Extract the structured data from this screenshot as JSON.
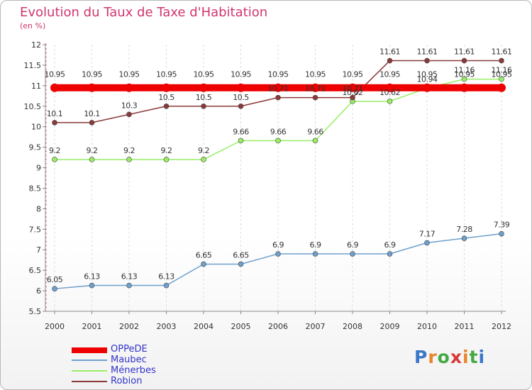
{
  "header": {
    "title": "Evolution du Taux de Taxe d'Habitation",
    "subtitle": "(en %)"
  },
  "logo": {
    "text": "Proxiti",
    "letter_colors": [
      "#3a78c8",
      "#e8862a",
      "#44a844",
      "#d63a3a",
      "#e8862a",
      "#44a844",
      "#3a78c8"
    ]
  },
  "chart_data": {
    "type": "line",
    "title": "Evolution du Taux de Taxe d'Habitation",
    "subtitle": "(en %)",
    "xlabel": "",
    "ylabel": "",
    "ylim": [
      5.5,
      12
    ],
    "yticks": [
      "5.5",
      "6",
      "6.5",
      "7",
      "7.5",
      "8",
      "8.5",
      "9",
      "9.5",
      "10",
      "10.5",
      "11",
      "11.5",
      "12"
    ],
    "x": [
      "2000",
      "2001",
      "2002",
      "2003",
      "2004",
      "2005",
      "2006",
      "2007",
      "2008",
      "2009",
      "2010",
      "2011",
      "2012"
    ],
    "grid": "vertical",
    "legend": "bottom-left",
    "series": [
      {
        "name": "OPPeDE",
        "color": "#ee0000",
        "values": [
          10.95,
          10.95,
          10.95,
          10.95,
          10.95,
          10.95,
          10.95,
          10.95,
          10.95,
          10.95,
          10.95,
          10.95,
          10.95
        ],
        "labels": [
          "10.95",
          "10.95",
          "10.95",
          "10.95",
          "10.95",
          "10.95",
          "10.95",
          "10.95",
          "10.95",
          "10.95",
          "10.95",
          "10.95",
          "10.95"
        ]
      },
      {
        "name": "Maubec",
        "color": "#6fa0cc",
        "values": [
          6.05,
          6.13,
          6.13,
          6.13,
          6.65,
          6.65,
          6.9,
          6.9,
          6.9,
          6.9,
          7.17,
          7.28,
          7.39
        ],
        "labels": [
          "6.05",
          "6.13",
          "6.13",
          "6.13",
          "6.65",
          "6.65",
          "6.9",
          "6.9",
          "6.9",
          "6.9",
          "7.17",
          "7.28",
          "7.39"
        ]
      },
      {
        "name": "Ménerbes",
        "color": "#99ee66",
        "values": [
          9.2,
          9.2,
          9.2,
          9.2,
          9.2,
          9.66,
          9.66,
          9.66,
          10.62,
          10.62,
          10.94,
          11.16,
          11.16
        ],
        "labels": [
          "9.2",
          "9.2",
          "9.2",
          "9.2",
          "9.2",
          "9.66",
          "9.66",
          "9.66",
          "10.62",
          "10.62",
          "10.94",
          "11.16",
          "11.16"
        ]
      },
      {
        "name": "Robion",
        "color": "#8a3a3a",
        "values": [
          10.1,
          10.1,
          10.3,
          10.5,
          10.5,
          10.5,
          10.71,
          10.71,
          10.71,
          11.61,
          11.61,
          11.61,
          11.61
        ],
        "labels": [
          "10.1",
          "10.1",
          "10.3",
          "10.5",
          "10.5",
          "10.5",
          "10.71",
          "10.71",
          "10.71",
          "11.61",
          "11.61",
          "11.61",
          "11.61"
        ]
      }
    ]
  }
}
